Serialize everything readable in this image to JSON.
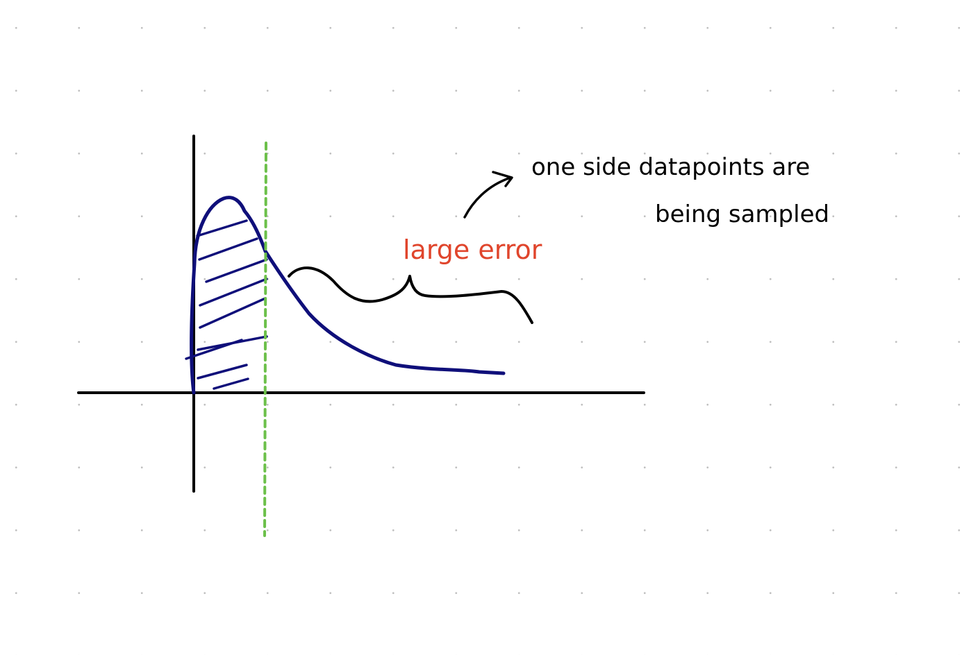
{
  "colors": {
    "background": "#ffffff",
    "grid_dot": "#bfbfbf",
    "axis": "#000000",
    "curve": "#0f0f7a",
    "divider": "#6cc04a",
    "error_label": "#e0452c",
    "annotation": "#000000"
  },
  "labels": {
    "error": "large error",
    "note_line1": "one side datapoints are",
    "note_line2": "being sampled"
  }
}
